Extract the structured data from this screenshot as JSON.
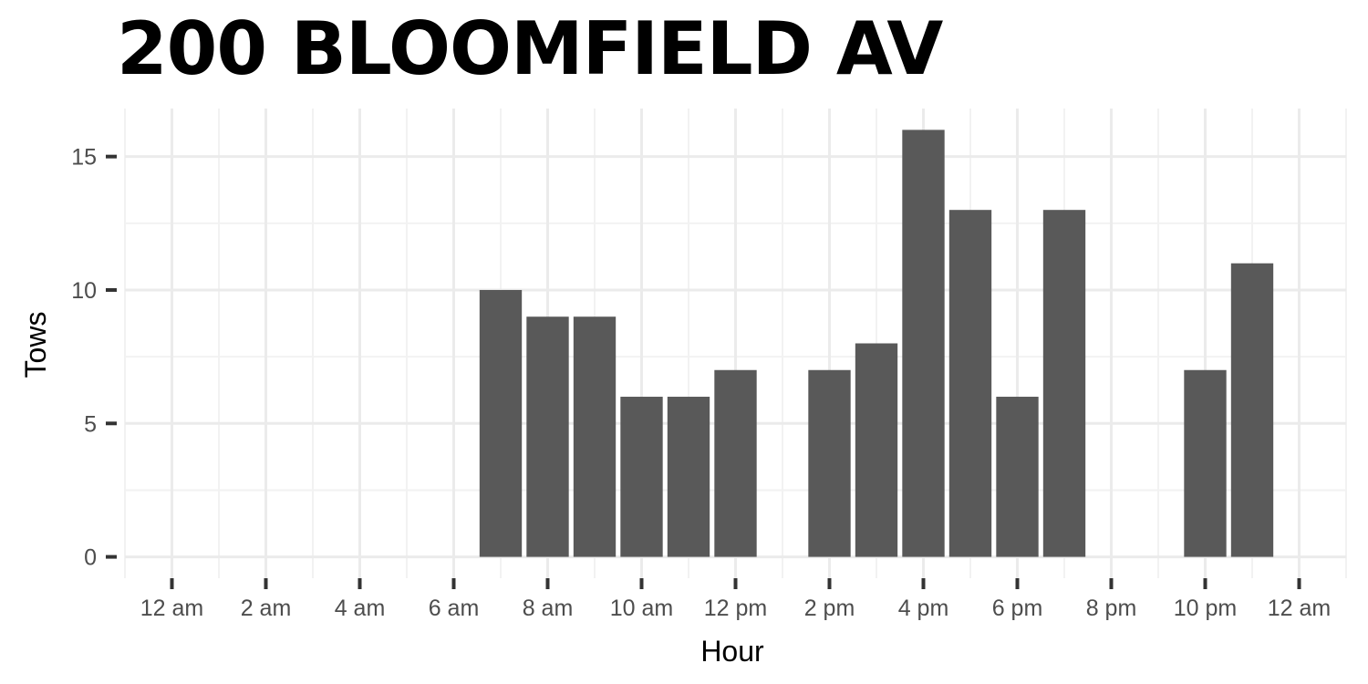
{
  "chart_data": {
    "type": "bar",
    "title": "200 BLOOMFIELD AV",
    "xlabel": "Hour",
    "ylabel": "Tows",
    "x_tick_labels": [
      "12 am",
      "2 am",
      "4 am",
      "6 am",
      "8 am",
      "10 am",
      "12 pm",
      "2 pm",
      "4 pm",
      "6 pm",
      "8 pm",
      "10 pm",
      "12 am"
    ],
    "x_tick_hours": [
      0,
      2,
      4,
      6,
      8,
      10,
      12,
      14,
      16,
      18,
      20,
      22,
      24
    ],
    "xlim": [
      -1,
      25
    ],
    "y_ticks": [
      0,
      5,
      10,
      15
    ],
    "ylim": [
      -0.8,
      16.8
    ],
    "grid": true,
    "bar_color": "#595959",
    "bars": [
      {
        "hour": 7,
        "value": 10
      },
      {
        "hour": 8,
        "value": 9
      },
      {
        "hour": 9,
        "value": 9
      },
      {
        "hour": 10,
        "value": 6
      },
      {
        "hour": 11,
        "value": 6
      },
      {
        "hour": 12,
        "value": 7
      },
      {
        "hour": 14,
        "value": 7
      },
      {
        "hour": 15,
        "value": 8
      },
      {
        "hour": 16,
        "value": 16
      },
      {
        "hour": 17,
        "value": 13
      },
      {
        "hour": 18,
        "value": 6
      },
      {
        "hour": 19,
        "value": 13
      },
      {
        "hour": 22,
        "value": 7
      },
      {
        "hour": 23,
        "value": 11
      }
    ]
  }
}
